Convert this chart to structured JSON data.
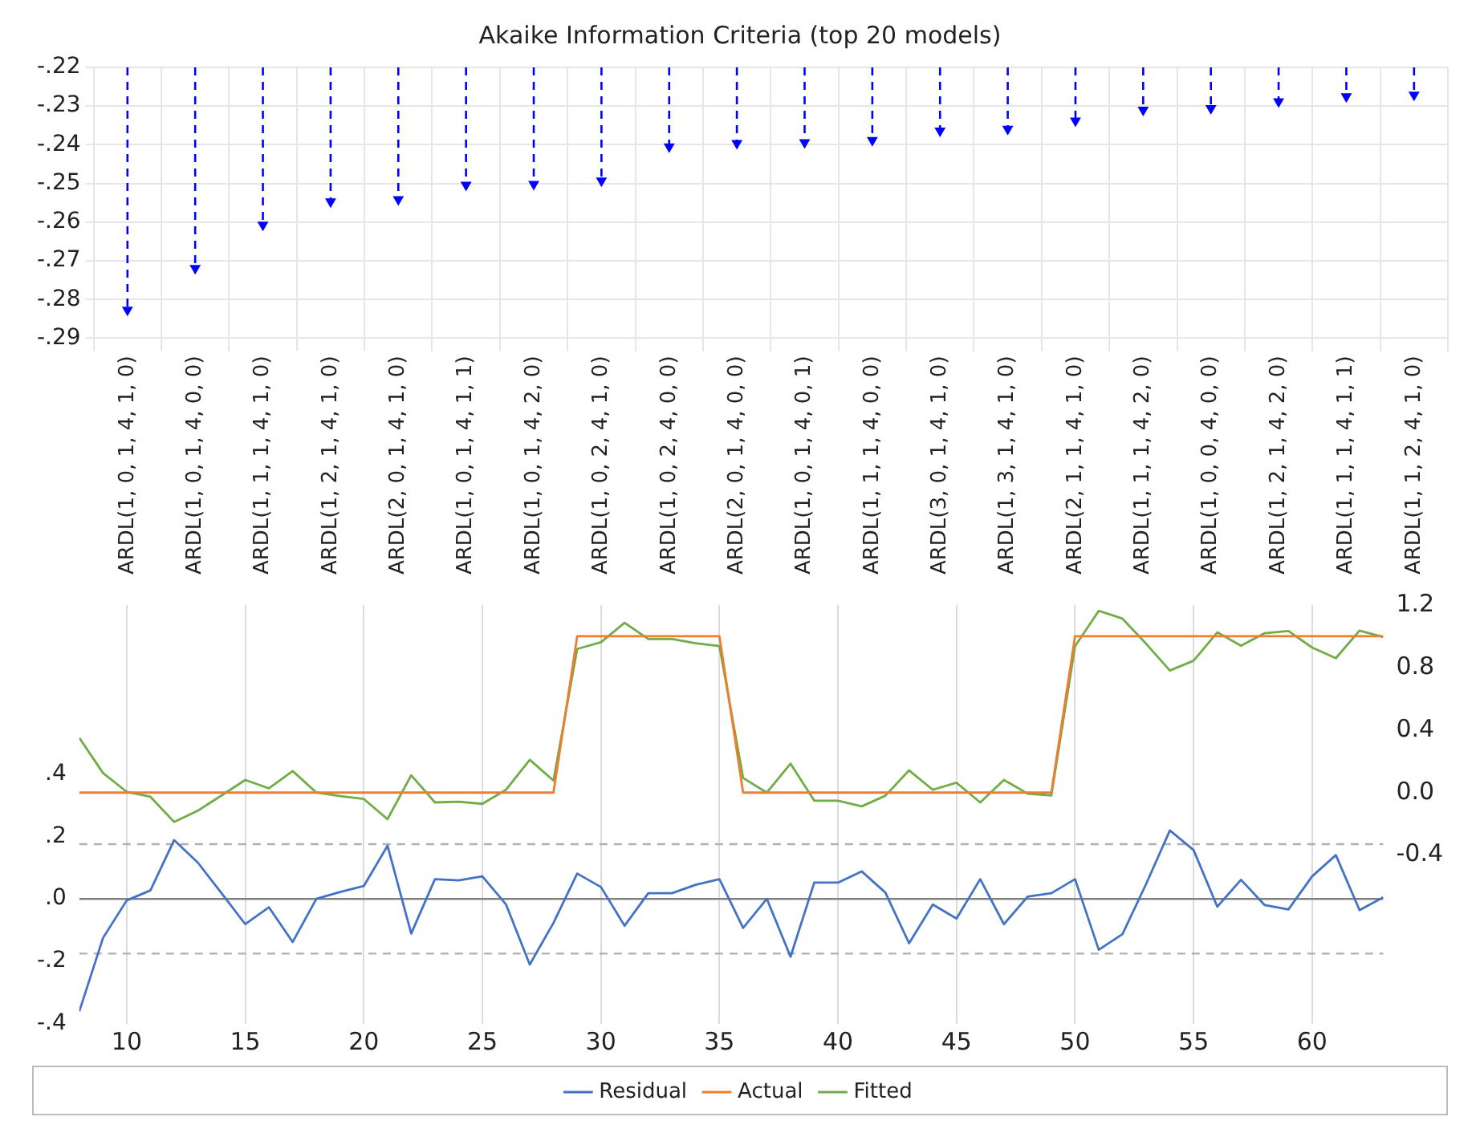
{
  "chart_data": [
    {
      "type": "lollipop",
      "title": "Akaike Information Criteria (top 20 models)",
      "categories": [
        "ARDL(1, 0, 1, 4, 1, 0)",
        "ARDL(1, 0, 1, 4, 0, 0)",
        "ARDL(1, 1, 1, 4, 1, 0)",
        "ARDL(1, 2, 1, 4, 1, 0)",
        "ARDL(2, 0, 1, 4, 1, 0)",
        "ARDL(1, 0, 1, 4, 1, 1)",
        "ARDL(1, 0, 1, 4, 2, 0)",
        "ARDL(1, 0, 2, 4, 1, 0)",
        "ARDL(1, 0, 2, 4, 0, 0)",
        "ARDL(2, 0, 1, 4, 0, 0)",
        "ARDL(1, 0, 1, 4, 0, 1)",
        "ARDL(1, 1, 1, 4, 0, 0)",
        "ARDL(3, 0, 1, 4, 1, 0)",
        "ARDL(1, 3, 1, 4, 1, 0)",
        "ARDL(2, 1, 1, 4, 1, 0)",
        "ARDL(1, 1, 1, 4, 2, 0)",
        "ARDL(1, 0, 0, 4, 0, 0)",
        "ARDL(1, 2, 1, 4, 2, 0)",
        "ARDL(1, 1, 1, 4, 1, 1)",
        "ARDL(1, 1, 2, 4, 1, 0)"
      ],
      "values": [
        -0.2827,
        -0.2719,
        -0.2607,
        -0.2547,
        -0.2541,
        -0.2504,
        -0.2502,
        -0.2493,
        -0.2405,
        -0.2396,
        -0.2394,
        -0.2388,
        -0.2364,
        -0.2359,
        -0.2338,
        -0.231,
        -0.2306,
        -0.2288,
        -0.2275,
        -0.2271
      ],
      "color": "#0000ff",
      "ylim": [
        -0.29,
        -0.22
      ],
      "yticks": [
        {
          "value": -0.29,
          "label": "-.29"
        },
        {
          "value": -0.28,
          "label": "-.28"
        },
        {
          "value": -0.27,
          "label": "-.27"
        },
        {
          "value": -0.26,
          "label": "-.26"
        },
        {
          "value": -0.25,
          "label": "-.25"
        },
        {
          "value": -0.24,
          "label": "-.24"
        },
        {
          "value": -0.23,
          "label": "-.23"
        },
        {
          "value": -0.22,
          "label": "-.22"
        }
      ],
      "grid": true,
      "line_style": "dashed",
      "marker": "triangle"
    },
    {
      "type": "line",
      "x": [
        8,
        9,
        10,
        11,
        12,
        13,
        14,
        15,
        16,
        17,
        18,
        19,
        20,
        21,
        22,
        23,
        24,
        25,
        26,
        27,
        28,
        29,
        30,
        31,
        32,
        33,
        34,
        35,
        36,
        37,
        38,
        39,
        40,
        41,
        42,
        43,
        44,
        45,
        46,
        47,
        48,
        49,
        50,
        51,
        52,
        53,
        54,
        55,
        56,
        57,
        58,
        59,
        60,
        61,
        62,
        63
      ],
      "xlim": [
        8,
        63
      ],
      "xticks": [
        10,
        15,
        20,
        25,
        30,
        35,
        40,
        45,
        50,
        55,
        60
      ],
      "ylim": [
        -0.4,
        0.94
      ],
      "yticks": [
        {
          "value": -0.4,
          "label": "-.4"
        },
        {
          "value": -0.2,
          "label": "-.2"
        },
        {
          "value": 0,
          "label": ".0"
        },
        {
          "value": 0.2,
          "label": ".2"
        },
        {
          "value": 0.4,
          "label": ".4"
        }
      ],
      "y2lim": [
        -1.48,
        1.2
      ],
      "y2ticks": [
        {
          "value": -0.4,
          "label": "-0.4"
        },
        {
          "value": 0,
          "label": "0.0"
        },
        0.4,
        0.8,
        1.2
      ],
      "grid": "x",
      "legend": "bottom",
      "marker": "none",
      "ref_lines": [
        {
          "axis": "y",
          "value": 0,
          "color": "#808080",
          "line_style": "solid"
        },
        {
          "axis": "y",
          "value": 0.175,
          "color": "#b0b0b0",
          "line_style": "dashed"
        },
        {
          "axis": "y",
          "value": -0.175,
          "color": "#b0b0b0",
          "line_style": "dashed"
        }
      ],
      "series": [
        {
          "name": "Residual",
          "color": "#4472c4",
          "axis": "y",
          "values": [
            -0.36,
            -0.125,
            -0.005,
            0.027,
            0.188,
            0.116,
            0.018,
            -0.081,
            -0.027,
            -0.138,
            0,
            0.022,
            0.041,
            0.17,
            -0.111,
            0.063,
            0.059,
            0.072,
            -0.018,
            -0.21,
            -0.077,
            0.081,
            0.038,
            -0.086,
            0.018,
            0.018,
            0.045,
            0.063,
            -0.093,
            0,
            -0.185,
            0.052,
            0.052,
            0.088,
            0.02,
            -0.142,
            -0.018,
            -0.063,
            0.063,
            -0.081,
            0.007,
            0.018,
            0.063,
            -0.163,
            -0.113,
            0.048,
            0.219,
            0.156,
            -0.025,
            0.061,
            -0.02,
            -0.034,
            0.072,
            0.14,
            -0.036,
            0.005
          ]
        },
        {
          "name": "Actual",
          "color": "#ed7d31",
          "axis": "y2",
          "values": [
            0,
            0,
            0,
            0,
            0,
            0,
            0,
            0,
            0,
            0,
            0,
            0,
            0,
            0,
            0,
            0,
            0,
            0,
            0,
            0,
            0,
            1,
            1,
            1,
            1,
            1,
            1,
            1,
            0,
            0,
            0,
            0,
            0,
            0,
            0,
            0,
            0,
            0,
            0,
            0,
            0,
            0,
            1,
            1,
            1,
            1,
            1,
            1,
            1,
            1,
            1,
            1,
            1,
            1,
            1,
            1
          ]
        },
        {
          "name": "Fitted",
          "color": "#70ad47",
          "axis": "y2",
          "values": [
            0.35,
            0.125,
            0.005,
            -0.027,
            -0.188,
            -0.116,
            -0.018,
            0.081,
            0.027,
            0.138,
            0,
            -0.022,
            -0.041,
            -0.17,
            0.111,
            -0.063,
            -0.059,
            -0.072,
            0.018,
            0.21,
            0.077,
            0.919,
            0.962,
            1.086,
            0.982,
            0.982,
            0.955,
            0.937,
            0.093,
            0,
            0.185,
            -0.052,
            -0.052,
            -0.088,
            -0.02,
            0.142,
            0.018,
            0.063,
            -0.063,
            0.081,
            -0.007,
            -0.018,
            0.937,
            1.163,
            1.113,
            0.952,
            0.781,
            0.844,
            1.025,
            0.939,
            1.02,
            1.034,
            0.928,
            0.86,
            1.036,
            0.995
          ]
        }
      ]
    }
  ]
}
